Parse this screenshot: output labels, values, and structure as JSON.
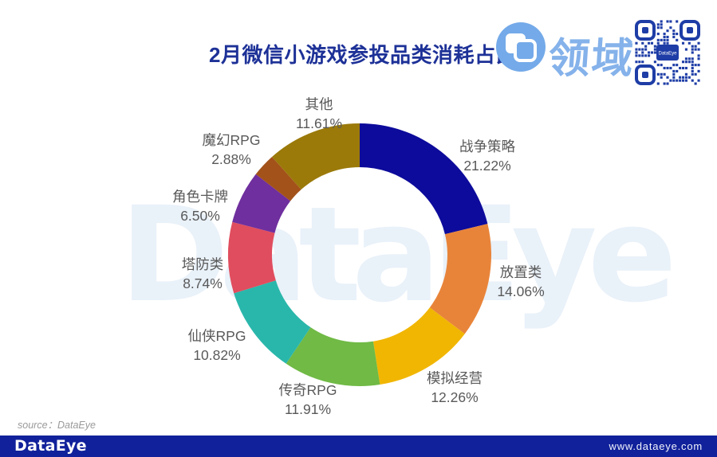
{
  "header": {
    "title": "2月微信小游戏参投品类消耗占比",
    "brand_text": "领域",
    "qr_center_label": "DataEye"
  },
  "watermark": "DataEye",
  "source_note": "source：DataEye",
  "footer": {
    "logo_text": "DataEye",
    "website": "www.dataeye.com"
  },
  "colors": {
    "title": "#1d3197",
    "footer_bg": "#11219b",
    "brand_light_blue": "#85b2ea",
    "qr_blue": "#1e3da6",
    "label_text": "#595959"
  },
  "chart_data": {
    "type": "pie",
    "subtype": "donut",
    "title": "2月微信小游戏参投品类消耗占比",
    "unit": "%",
    "start_angle_deg": 0,
    "direction": "clockwise",
    "legend_position": "outside-labels",
    "categories": [
      "战争策略",
      "放置类",
      "模拟经营",
      "传奇RPG",
      "仙侠RPG",
      "塔防类",
      "角色卡牌",
      "魔幻RPG",
      "其他"
    ],
    "values": [
      21.22,
      14.06,
      12.26,
      11.91,
      10.82,
      8.74,
      6.5,
      2.88,
      11.61
    ],
    "colors": [
      "#0d0b9b",
      "#e8843a",
      "#f1b602",
      "#70ba45",
      "#2ab7ab",
      "#e04d5e",
      "#6f2f9e",
      "#a3521a",
      "#9b7a0a"
    ],
    "label_color": "#595959"
  }
}
